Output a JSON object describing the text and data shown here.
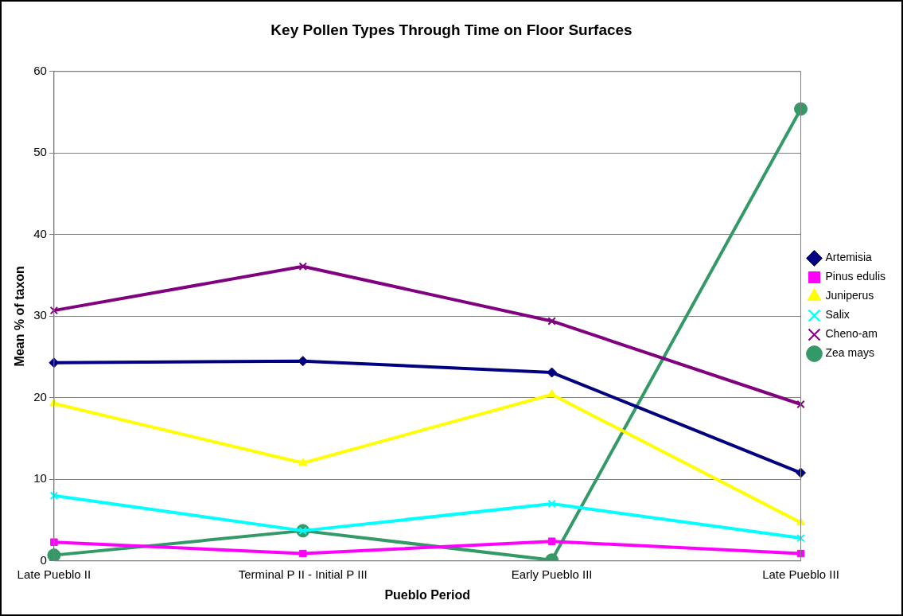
{
  "chart_data": {
    "type": "line",
    "title": "Key Pollen Types Through Time on Floor Surfaces",
    "xlabel": "Pueblo Period",
    "ylabel": "Mean % of taxon",
    "categories": [
      "Late Pueblo II",
      "Terminal P II - Initial P III",
      "Early Pueblo III",
      "Late Pueblo III"
    ],
    "series": [
      {
        "name": "Artemisia",
        "color": "#000080",
        "marker": "diamond",
        "values": [
          24.3,
          24.5,
          23.1,
          10.8
        ]
      },
      {
        "name": "Pinus edulis",
        "color": "#ff00ff",
        "marker": "square",
        "values": [
          2.3,
          0.9,
          2.4,
          0.9
        ]
      },
      {
        "name": "Juniperus",
        "color": "#ffff00",
        "marker": "triangle",
        "values": [
          19.3,
          12.0,
          20.4,
          4.7
        ]
      },
      {
        "name": "Salix",
        "color": "#00ffff",
        "marker": "cross",
        "values": [
          8.0,
          3.7,
          7.0,
          2.8
        ]
      },
      {
        "name": "Cheno-am",
        "color": "#800080",
        "marker": "cross",
        "values": [
          30.7,
          36.1,
          29.4,
          19.2
        ]
      },
      {
        "name": "Zea mays",
        "color": "#339966",
        "marker": "circle",
        "values": [
          0.7,
          3.7,
          0.1,
          55.4
        ]
      }
    ],
    "ylim": [
      0,
      60
    ],
    "yticks": [
      0,
      10,
      20,
      30,
      40,
      50,
      60
    ],
    "grid": "y",
    "legend": "right",
    "line_style": "solid"
  }
}
